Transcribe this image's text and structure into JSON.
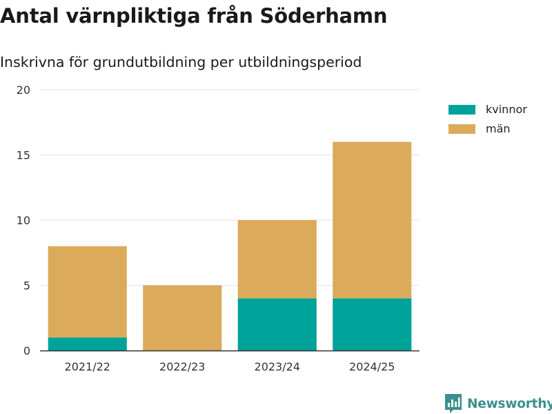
{
  "header": {
    "title": "Antal värnpliktiga från Söderhamn",
    "subtitle": "Inskrivna för grundutbildning per utbildningsperiod"
  },
  "chart_data": {
    "type": "bar",
    "stacked": true,
    "title": "Antal värnpliktiga från Söderhamn",
    "subtitle": "Inskrivna för grundutbildning per utbildningsperiod",
    "categories": [
      "2021/22",
      "2022/23",
      "2023/24",
      "2024/25"
    ],
    "series": [
      {
        "name": "kvinnor",
        "values": [
          1,
          0,
          4,
          4
        ],
        "color": "#00a39a"
      },
      {
        "name": "män",
        "values": [
          7,
          5,
          6,
          12
        ],
        "color": "#dbab5b"
      }
    ],
    "ylim": [
      0,
      20
    ],
    "yticks": [
      0,
      5,
      10,
      15,
      20
    ],
    "grid": true,
    "legend_position": "top-right"
  },
  "branding": {
    "logo_text": "Newsworthy",
    "logo_icon": "newsworthy-logo-icon",
    "logo_color": "#3c8f8c"
  }
}
